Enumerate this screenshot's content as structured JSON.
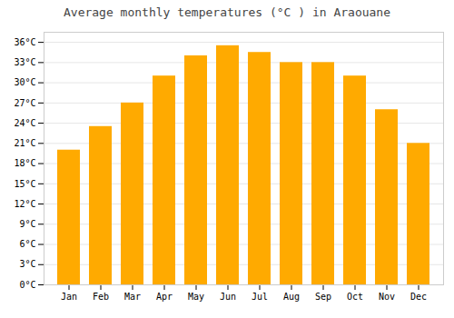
{
  "chart_data": {
    "type": "bar",
    "title": "Average monthly temperatures (°C ) in Araouane",
    "categories": [
      "Jan",
      "Feb",
      "Mar",
      "Apr",
      "May",
      "Jun",
      "Jul",
      "Aug",
      "Sep",
      "Oct",
      "Nov",
      "Dec"
    ],
    "values": [
      20,
      23.5,
      27,
      31,
      34,
      35.5,
      34.5,
      33,
      33,
      31,
      26,
      21
    ],
    "color": "#FFAA00",
    "ylim": [
      0,
      37.5
    ],
    "yticks": [
      {
        "value": 0,
        "label": "0°C"
      },
      {
        "value": 3,
        "label": "3°C"
      },
      {
        "value": 6,
        "label": "6°C"
      },
      {
        "value": 9,
        "label": "9°C"
      },
      {
        "value": 12,
        "label": "12°C"
      },
      {
        "value": 15,
        "label": "15°C"
      },
      {
        "value": 18,
        "label": "18°C"
      },
      {
        "value": 21,
        "label": "21°C"
      },
      {
        "value": 24,
        "label": "24°C"
      },
      {
        "value": 27,
        "label": "27°C"
      },
      {
        "value": 30,
        "label": "30°C"
      },
      {
        "value": 33,
        "label": "33°C"
      },
      {
        "value": 36,
        "label": "36°C"
      }
    ],
    "grid": true
  }
}
